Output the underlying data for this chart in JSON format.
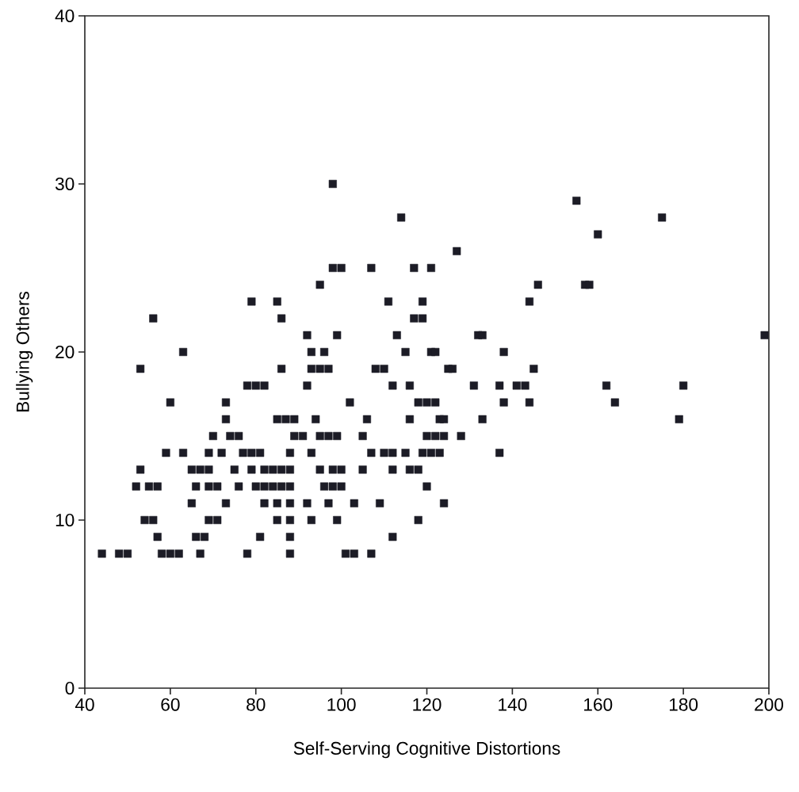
{
  "chart_data": {
    "type": "scatter",
    "xlabel": "Self-Serving Cognitive Distortions",
    "ylabel": "Bullying Others",
    "xlim": [
      40,
      200
    ],
    "ylim": [
      0,
      40
    ],
    "xticks": [
      40,
      60,
      80,
      100,
      120,
      140,
      160,
      180,
      200
    ],
    "yticks": [
      0,
      10,
      20,
      30,
      40
    ],
    "marker": "square",
    "series": [
      {
        "color": "#1c1c26",
        "x": [
          98,
          98,
          100,
          95,
          79,
          85,
          56,
          86,
          92,
          99,
          63,
          93,
          96,
          53,
          86,
          93,
          95,
          97,
          78,
          80,
          82,
          92,
          60,
          73,
          73,
          85,
          87,
          89,
          94,
          70,
          74,
          76,
          89,
          91,
          95,
          97,
          99,
          59,
          63,
          69,
          72,
          77,
          79,
          81,
          88,
          93,
          53,
          65,
          67,
          69,
          75,
          79,
          82,
          84,
          86,
          88,
          95,
          98,
          100,
          52,
          55,
          57,
          66,
          69,
          71,
          76,
          80,
          82,
          84,
          86,
          88,
          96,
          98,
          100,
          65,
          73,
          82,
          85,
          88,
          92,
          97,
          54,
          56,
          69,
          71,
          85,
          88,
          93,
          99,
          57,
          66,
          68,
          81,
          88,
          44,
          48,
          50,
          58,
          60,
          62,
          67,
          78,
          88,
          114,
          155,
          127,
          107,
          117,
          121,
          146,
          157,
          111,
          119,
          144,
          117,
          119,
          113,
          132,
          133,
          115,
          121,
          122,
          138,
          108,
          110,
          125,
          126,
          145,
          112,
          116,
          131,
          137,
          141,
          143,
          102,
          118,
          120,
          122,
          138,
          144,
          106,
          116,
          123,
          124,
          133,
          105,
          120,
          122,
          124,
          128,
          107,
          110,
          112,
          115,
          119,
          121,
          123,
          137,
          105,
          112,
          116,
          118,
          120,
          103,
          109,
          124,
          118,
          112,
          101,
          103,
          107,
          175,
          160,
          158,
          199,
          162,
          180,
          164,
          179
        ],
        "values": [
          30,
          25,
          25,
          24,
          23,
          23,
          22,
          22,
          21,
          21,
          20,
          20,
          20,
          19,
          19,
          19,
          19,
          19,
          18,
          18,
          18,
          18,
          17,
          17,
          16,
          16,
          16,
          16,
          16,
          15,
          15,
          15,
          15,
          15,
          15,
          15,
          15,
          14,
          14,
          14,
          14,
          14,
          14,
          14,
          14,
          14,
          13,
          13,
          13,
          13,
          13,
          13,
          13,
          13,
          13,
          13,
          13,
          13,
          13,
          12,
          12,
          12,
          12,
          12,
          12,
          12,
          12,
          12,
          12,
          12,
          12,
          12,
          12,
          12,
          11,
          11,
          11,
          11,
          11,
          11,
          11,
          10,
          10,
          10,
          10,
          10,
          10,
          10,
          10,
          9,
          9,
          9,
          9,
          9,
          8,
          8,
          8,
          8,
          8,
          8,
          8,
          8,
          8,
          28,
          29,
          26,
          25,
          25,
          25,
          24,
          24,
          23,
          23,
          23,
          22,
          22,
          21,
          21,
          21,
          20,
          20,
          20,
          20,
          19,
          19,
          19,
          19,
          19,
          18,
          18,
          18,
          18,
          18,
          18,
          17,
          17,
          17,
          17,
          17,
          17,
          16,
          16,
          16,
          16,
          16,
          15,
          15,
          15,
          15,
          15,
          14,
          14,
          14,
          14,
          14,
          14,
          14,
          14,
          13,
          13,
          13,
          13,
          12,
          11,
          11,
          11,
          10,
          9,
          8,
          8,
          8,
          28,
          27,
          24,
          21,
          18,
          18,
          17,
          16
        ]
      }
    ]
  }
}
